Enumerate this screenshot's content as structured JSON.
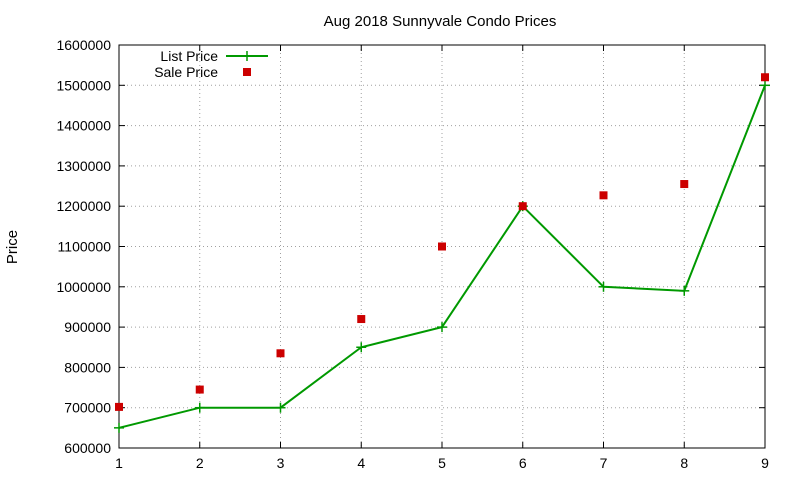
{
  "chart_data": {
    "type": "line",
    "title": "Aug 2018 Sunnyvale Condo Prices",
    "xlabel": "",
    "ylabel": "Price",
    "x": [
      1,
      2,
      3,
      4,
      5,
      6,
      7,
      8,
      9
    ],
    "xlim": [
      1,
      9
    ],
    "ylim": [
      600000,
      1600000
    ],
    "xticks": [
      1,
      2,
      3,
      4,
      5,
      6,
      7,
      8,
      9
    ],
    "yticks": [
      600000,
      700000,
      800000,
      900000,
      1000000,
      1100000,
      1200000,
      1300000,
      1400000,
      1500000,
      1600000
    ],
    "grid": true,
    "legend_position": "top-left",
    "series": [
      {
        "name": "List Price",
        "style": "lines+points",
        "marker": "plus",
        "color": "#009900",
        "values": [
          650000,
          700000,
          700000,
          850000,
          900000,
          1200000,
          1000000,
          990000,
          1500000
        ]
      },
      {
        "name": "Sale Price",
        "style": "points",
        "marker": "square",
        "color": "#cc0000",
        "values": [
          702000,
          745000,
          835000,
          920000,
          1100000,
          1200000,
          1227000,
          1255000,
          1520000
        ]
      }
    ]
  }
}
